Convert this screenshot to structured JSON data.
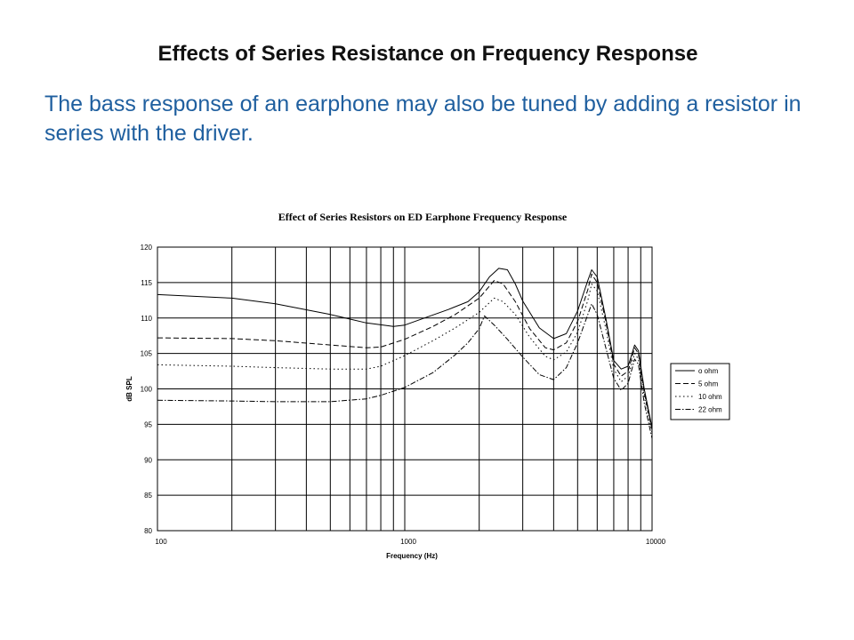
{
  "slide": {
    "title": "Effects of Series Resistance on Frequency Response",
    "body": "The bass response of an earphone may also be tuned by adding a resistor in series with the driver."
  },
  "chart_data": {
    "type": "line",
    "title": "Effect of Series Resistors on ED Earphone Frequency Response",
    "xlabel": "Frequency (Hz)",
    "ylabel": "dB SPL",
    "x_scale": "log",
    "xlim": [
      100,
      10000
    ],
    "ylim": [
      80,
      120
    ],
    "x_ticks": [
      "100",
      "1000",
      "10000"
    ],
    "y_ticks": [
      "80",
      "85",
      "90",
      "95",
      "100",
      "105",
      "110",
      "115",
      "120"
    ],
    "grid": true,
    "legend_position": "right",
    "series": [
      {
        "name": "o ohm",
        "dash": "",
        "points": [
          [
            100,
            113.3
          ],
          [
            200,
            112.8
          ],
          [
            300,
            112.0
          ],
          [
            500,
            110.5
          ],
          [
            700,
            109.3
          ],
          [
            900,
            108.8
          ],
          [
            1000,
            109.0
          ],
          [
            1200,
            110.0
          ],
          [
            1500,
            111.2
          ],
          [
            1800,
            112.3
          ],
          [
            2000,
            113.7
          ],
          [
            2200,
            115.8
          ],
          [
            2400,
            117.0
          ],
          [
            2600,
            116.8
          ],
          [
            2800,
            114.8
          ],
          [
            3000,
            112.4
          ],
          [
            3500,
            108.6
          ],
          [
            4000,
            107.1
          ],
          [
            4500,
            107.8
          ],
          [
            5000,
            111.0
          ],
          [
            5500,
            115.3
          ],
          [
            5700,
            116.8
          ],
          [
            6000,
            115.8
          ],
          [
            6500,
            110.0
          ],
          [
            7000,
            104.0
          ],
          [
            7500,
            102.8
          ],
          [
            8000,
            103.2
          ],
          [
            8500,
            106.2
          ],
          [
            8800,
            105.4
          ],
          [
            9300,
            100.0
          ],
          [
            10000,
            94.5
          ]
        ]
      },
      {
        "name": "5 ohm",
        "dash": "6,3",
        "points": [
          [
            100,
            107.2
          ],
          [
            200,
            107.1
          ],
          [
            300,
            106.8
          ],
          [
            500,
            106.2
          ],
          [
            700,
            105.8
          ],
          [
            800,
            105.9
          ],
          [
            1000,
            107.0
          ],
          [
            1300,
            108.8
          ],
          [
            1600,
            110.5
          ],
          [
            2000,
            112.8
          ],
          [
            2300,
            115.3
          ],
          [
            2500,
            114.8
          ],
          [
            2800,
            112.3
          ],
          [
            3200,
            108.5
          ],
          [
            3700,
            105.8
          ],
          [
            4000,
            105.5
          ],
          [
            4500,
            106.5
          ],
          [
            5000,
            109.5
          ],
          [
            5500,
            114.0
          ],
          [
            5700,
            116.2
          ],
          [
            6000,
            115.0
          ],
          [
            6500,
            109.5
          ],
          [
            7000,
            103.5
          ],
          [
            7500,
            101.8
          ],
          [
            8000,
            102.5
          ],
          [
            8500,
            105.8
          ],
          [
            8800,
            105.0
          ],
          [
            9300,
            99.5
          ],
          [
            10000,
            94.2
          ]
        ]
      },
      {
        "name": "10 ohm",
        "dash": "1.5,3",
        "points": [
          [
            100,
            103.4
          ],
          [
            200,
            103.2
          ],
          [
            300,
            103.0
          ],
          [
            500,
            102.8
          ],
          [
            700,
            102.8
          ],
          [
            800,
            103.2
          ],
          [
            1000,
            104.7
          ],
          [
            1300,
            106.8
          ],
          [
            1600,
            108.6
          ],
          [
            2000,
            110.8
          ],
          [
            2300,
            112.8
          ],
          [
            2500,
            112.3
          ],
          [
            2800,
            110.5
          ],
          [
            3200,
            107.3
          ],
          [
            3700,
            104.6
          ],
          [
            4000,
            104.1
          ],
          [
            4500,
            105.2
          ],
          [
            5000,
            108.0
          ],
          [
            5500,
            112.5
          ],
          [
            5700,
            114.8
          ],
          [
            6000,
            113.8
          ],
          [
            6500,
            108.5
          ],
          [
            7000,
            102.8
          ],
          [
            7500,
            101.0
          ],
          [
            8000,
            101.8
          ],
          [
            8500,
            105.0
          ],
          [
            8800,
            104.2
          ],
          [
            9300,
            99.0
          ],
          [
            10000,
            93.8
          ]
        ]
      },
      {
        "name": "22 ohm",
        "dash": "6,2,1.5,2",
        "points": [
          [
            100,
            98.4
          ],
          [
            200,
            98.3
          ],
          [
            300,
            98.2
          ],
          [
            500,
            98.2
          ],
          [
            700,
            98.6
          ],
          [
            800,
            99.1
          ],
          [
            1000,
            100.2
          ],
          [
            1300,
            102.3
          ],
          [
            1600,
            104.8
          ],
          [
            1800,
            106.5
          ],
          [
            2000,
            108.5
          ],
          [
            2100,
            110.3
          ],
          [
            2300,
            109.0
          ],
          [
            2600,
            107.0
          ],
          [
            3000,
            104.5
          ],
          [
            3500,
            102.0
          ],
          [
            4000,
            101.3
          ],
          [
            4500,
            103.0
          ],
          [
            5000,
            106.5
          ],
          [
            5500,
            110.5
          ],
          [
            5700,
            112.0
          ],
          [
            6000,
            110.5
          ],
          [
            6500,
            105.8
          ],
          [
            7000,
            101.5
          ],
          [
            7500,
            99.8
          ],
          [
            8000,
            100.8
          ],
          [
            8500,
            104.2
          ],
          [
            8800,
            103.5
          ],
          [
            9300,
            98.0
          ],
          [
            10000,
            93.0
          ]
        ]
      }
    ]
  }
}
